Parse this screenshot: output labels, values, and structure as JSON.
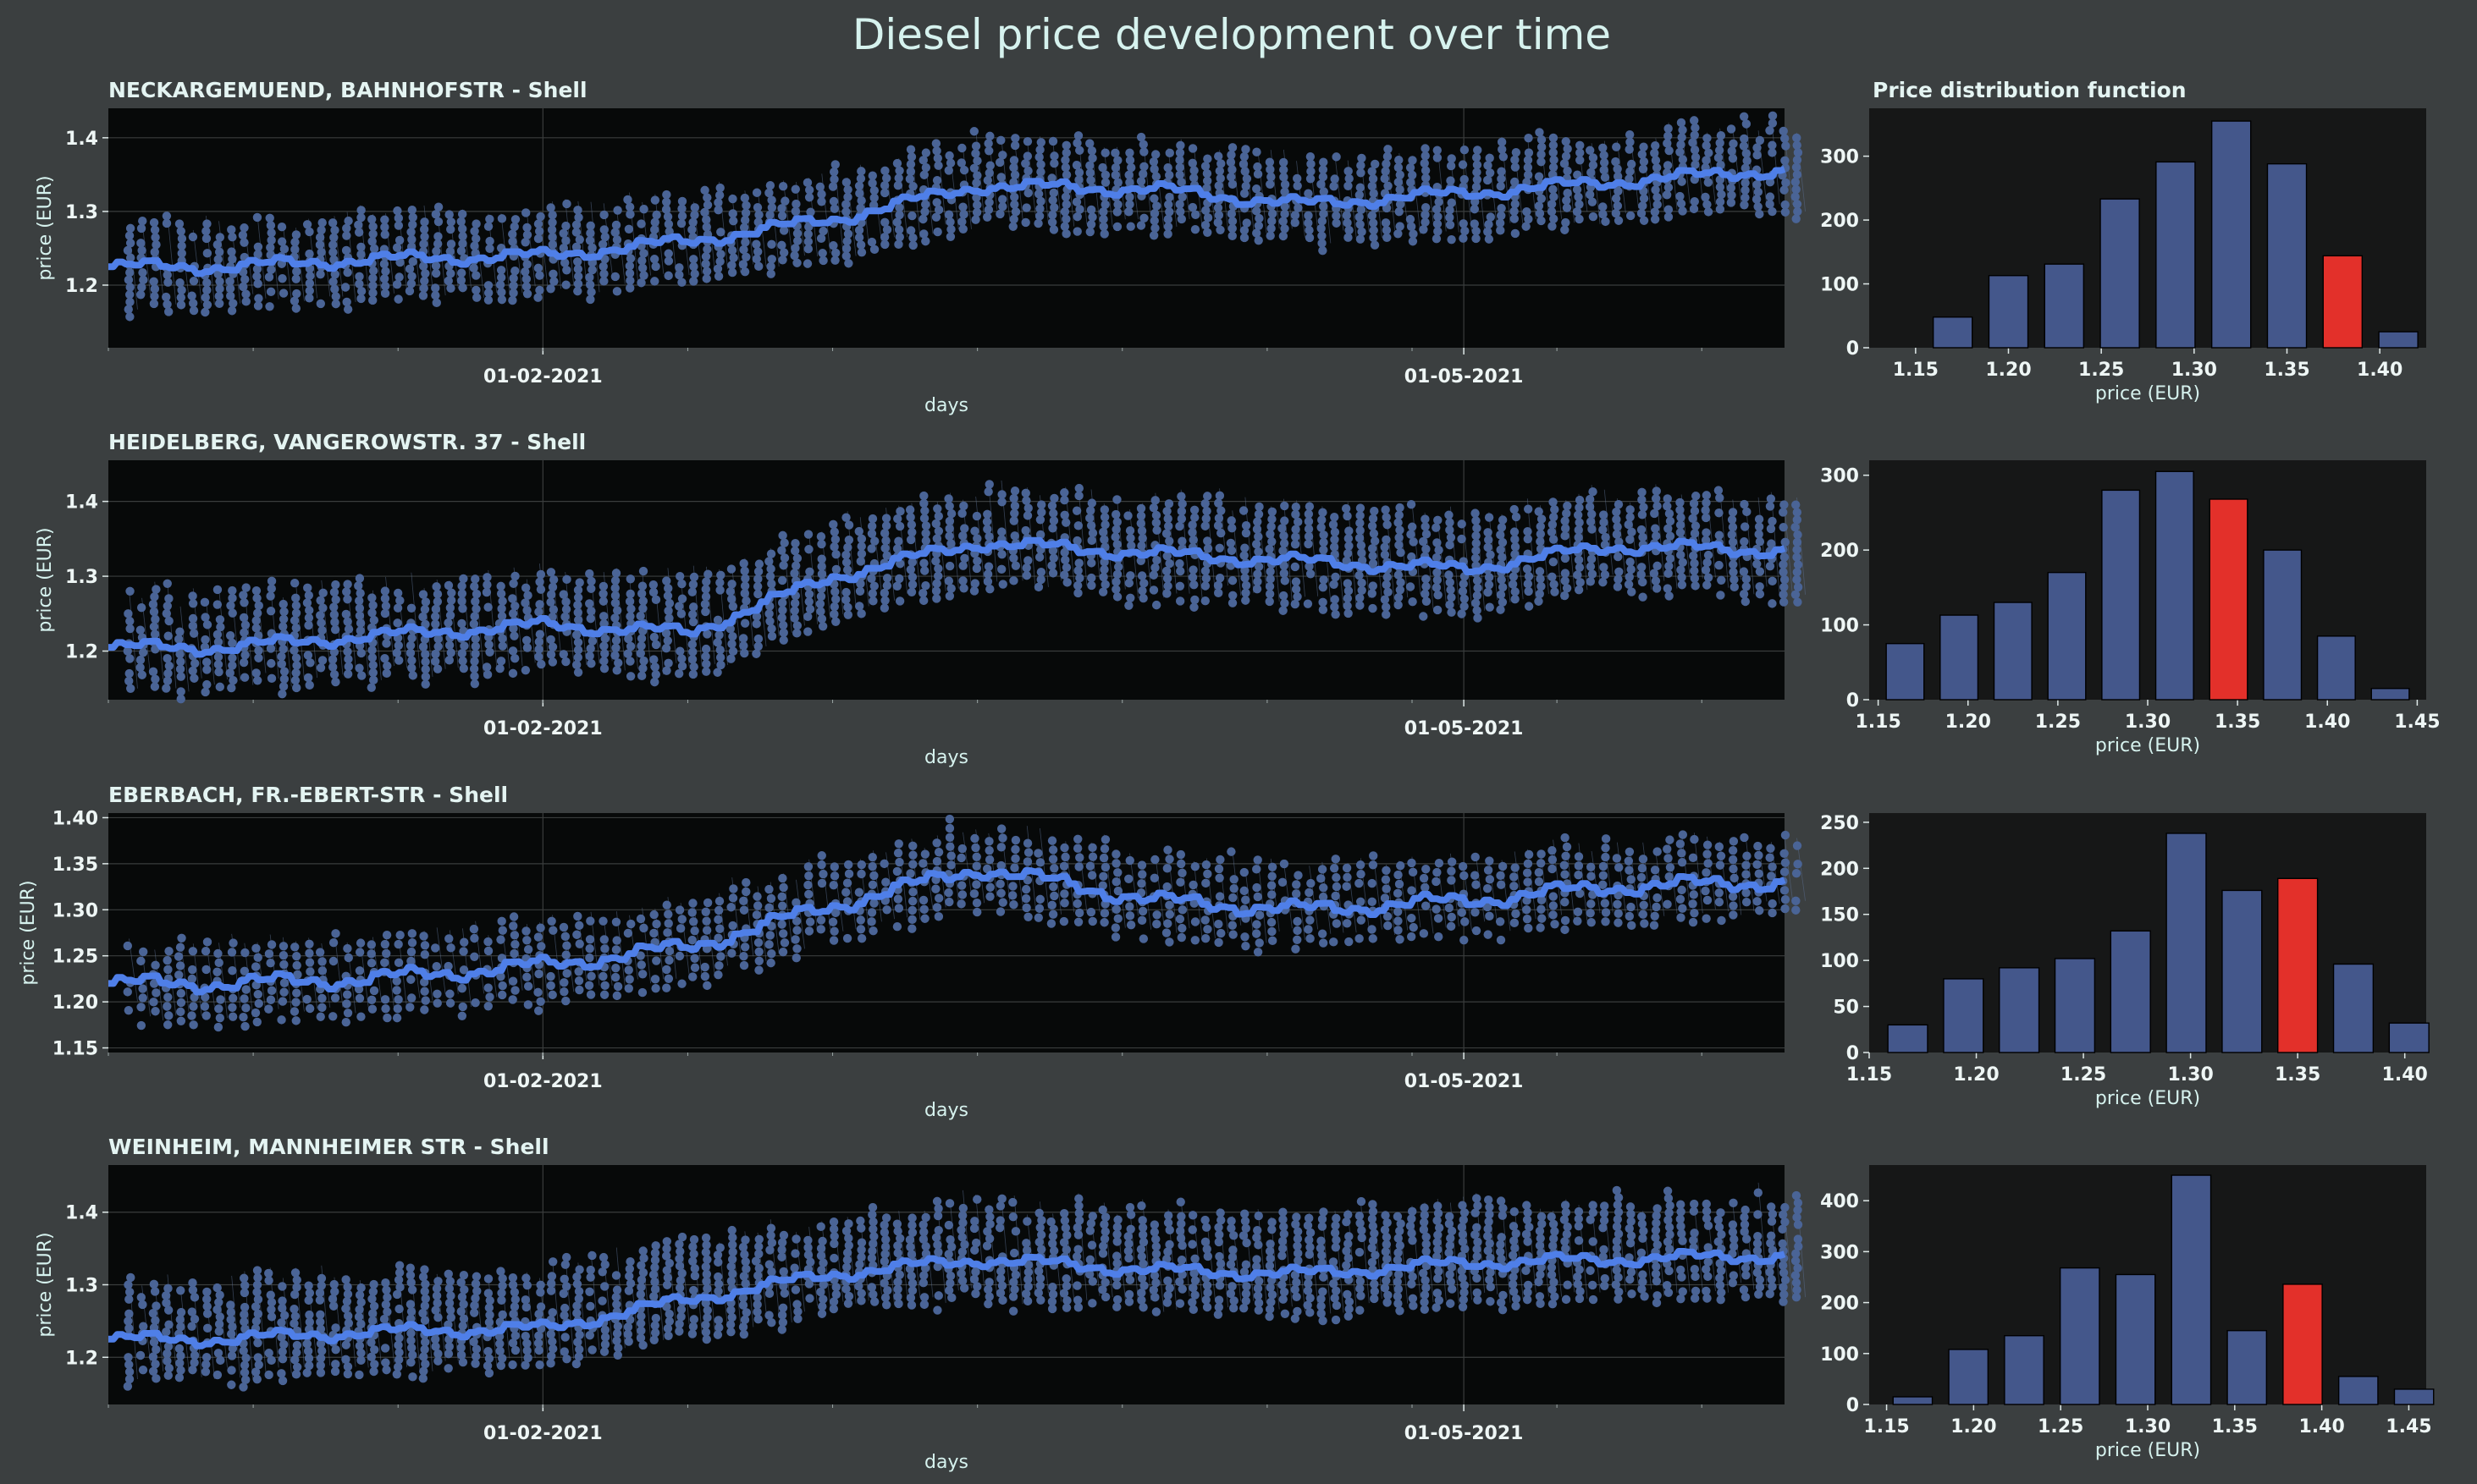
{
  "title": "Diesel price development over time",
  "colors": {
    "figure_bg": "#3b3f40",
    "timeseries_bg": "#070909",
    "histogram_bg": "#161717",
    "raw_points": "#4a6496",
    "smoothed_line": "#4f7fe8",
    "bar_fill": "#44578b",
    "bar_highlight": "#e3302a",
    "text": "#d6f2ee"
  },
  "chart_data": [
    {
      "type": "line",
      "title": "NECKARGEMUEND, BAHNHOFSTR - Shell",
      "xlabel": "days",
      "ylabel": "price (EUR)",
      "x_ticks": [
        "01-02-2021",
        "01-05-2021"
      ],
      "yticks": [
        1.2,
        1.3,
        1.4
      ],
      "ylim": [
        1.115,
        1.44
      ],
      "series": [
        {
          "x": [
            "01-01-2021",
            "15-01-2021",
            "01-02-2021",
            "15-02-2021",
            "01-03-2021",
            "15-03-2021",
            "01-04-2021",
            "15-04-2021",
            "01-05-2021",
            "15-05-2021",
            "30-05-2021"
          ],
          "values": [
            1.225,
            1.235,
            1.24,
            1.26,
            1.29,
            1.335,
            1.33,
            1.31,
            1.325,
            1.34,
            1.355
          ]
        }
      ],
      "point_spread": {
        "low": 0.055,
        "high": 0.065
      },
      "grid": true
    },
    {
      "type": "line",
      "title": "HEIDELBERG, VANGEROWSTR. 37 - Shell",
      "xlabel": "days",
      "ylabel": "price (EUR)",
      "x_ticks": [
        "01-02-2021",
        "01-05-2021"
      ],
      "yticks": [
        1.2,
        1.3,
        1.4
      ],
      "ylim": [
        1.135,
        1.455
      ],
      "series": [
        {
          "x": [
            "01-01-2021",
            "15-01-2021",
            "01-02-2021",
            "15-02-2021",
            "01-03-2021",
            "15-03-2021",
            "01-04-2021",
            "15-04-2021",
            "01-05-2021",
            "15-05-2021",
            "30-05-2021"
          ],
          "values": [
            1.205,
            1.22,
            1.235,
            1.225,
            1.3,
            1.345,
            1.33,
            1.32,
            1.31,
            1.34,
            1.335
          ]
        }
      ],
      "point_spread": {
        "low": 0.06,
        "high": 0.075
      },
      "grid": true
    },
    {
      "type": "line",
      "title": "EBERBACH, FR.-EBERT-STR - Shell",
      "xlabel": "days",
      "ylabel": "price (EUR)",
      "x_ticks": [
        "01-02-2021",
        "01-05-2021"
      ],
      "yticks": [
        1.15,
        1.2,
        1.25,
        1.3,
        1.35,
        1.4
      ],
      "ylim": [
        1.145,
        1.405
      ],
      "series": [
        {
          "x": [
            "01-01-2021",
            "15-01-2021",
            "01-02-2021",
            "15-02-2021",
            "01-03-2021",
            "15-03-2021",
            "01-04-2021",
            "15-04-2021",
            "01-05-2021",
            "15-05-2021",
            "30-05-2021"
          ],
          "values": [
            1.22,
            1.225,
            1.24,
            1.26,
            1.305,
            1.345,
            1.31,
            1.3,
            1.31,
            1.325,
            1.33
          ]
        }
      ],
      "point_spread": {
        "low": 0.04,
        "high": 0.05
      },
      "grid": true
    },
    {
      "type": "line",
      "title": "WEINHEIM, MANNHEIMER STR - Shell",
      "xlabel": "days",
      "ylabel": "price (EUR)",
      "x_ticks": [
        "01-02-2021",
        "01-05-2021"
      ],
      "yticks": [
        1.2,
        1.3,
        1.4
      ],
      "ylim": [
        1.135,
        1.465
      ],
      "series": [
        {
          "x": [
            "01-01-2021",
            "15-01-2021",
            "01-02-2021",
            "15-02-2021",
            "01-03-2021",
            "15-03-2021",
            "01-04-2021",
            "15-04-2021",
            "01-05-2021",
            "15-05-2021",
            "30-05-2021"
          ],
          "values": [
            1.225,
            1.235,
            1.24,
            1.28,
            1.315,
            1.335,
            1.32,
            1.315,
            1.33,
            1.335,
            1.34
          ]
        }
      ],
      "point_spread": {
        "low": 0.055,
        "high": 0.085
      },
      "grid": true
    },
    {
      "type": "bar",
      "title": "Price distribution function",
      "xlabel": "price (EUR)",
      "x_ticks": [
        1.15,
        1.2,
        1.25,
        1.3,
        1.35,
        1.4
      ],
      "xlim": [
        1.125,
        1.425
      ],
      "yticks": [
        0,
        100,
        200,
        300
      ],
      "ylim": [
        0,
        375
      ],
      "bar_width": 0.021,
      "categories": [
        1.17,
        1.2,
        1.23,
        1.26,
        1.29,
        1.32,
        1.35,
        1.38,
        1.41
      ],
      "values": [
        48,
        113,
        131,
        233,
        291,
        355,
        288,
        144,
        25
      ],
      "highlight_index": 7
    },
    {
      "type": "bar",
      "title": "",
      "xlabel": "price (EUR)",
      "x_ticks": [
        1.15,
        1.2,
        1.25,
        1.3,
        1.35,
        1.4,
        1.45
      ],
      "xlim": [
        1.145,
        1.455
      ],
      "yticks": [
        0,
        100,
        200,
        300
      ],
      "ylim": [
        0,
        320
      ],
      "bar_width": 0.021,
      "categories": [
        1.165,
        1.195,
        1.225,
        1.255,
        1.285,
        1.315,
        1.345,
        1.375,
        1.405,
        1.435
      ],
      "values": [
        75,
        113,
        130,
        170,
        280,
        305,
        268,
        200,
        85,
        15
      ],
      "highlight_index": 6
    },
    {
      "type": "bar",
      "title": "",
      "xlabel": "price (EUR)",
      "x_ticks": [
        1.15,
        1.2,
        1.25,
        1.3,
        1.35,
        1.4
      ],
      "xlim": [
        1.15,
        1.41
      ],
      "yticks": [
        0,
        50,
        100,
        150,
        200,
        250
      ],
      "ylim": [
        0,
        260
      ],
      "bar_width": 0.0185,
      "categories": [
        1.168,
        1.194,
        1.22,
        1.246,
        1.272,
        1.298,
        1.324,
        1.35,
        1.376,
        1.402
      ],
      "values": [
        30,
        80,
        92,
        102,
        132,
        238,
        176,
        189,
        96,
        32
      ],
      "highlight_index": 7
    },
    {
      "type": "bar",
      "title": "",
      "xlabel": "price (EUR)",
      "x_ticks": [
        1.15,
        1.2,
        1.25,
        1.3,
        1.35,
        1.4,
        1.45
      ],
      "xlim": [
        1.14,
        1.46
      ],
      "yticks": [
        0,
        100,
        200,
        300,
        400
      ],
      "ylim": [
        0,
        470
      ],
      "bar_width": 0.0225,
      "categories": [
        1.165,
        1.197,
        1.229,
        1.261,
        1.293,
        1.325,
        1.357,
        1.389,
        1.421,
        1.453
      ],
      "values": [
        15,
        108,
        135,
        268,
        255,
        450,
        145,
        236,
        55,
        30
      ],
      "highlight_index": 7
    }
  ]
}
